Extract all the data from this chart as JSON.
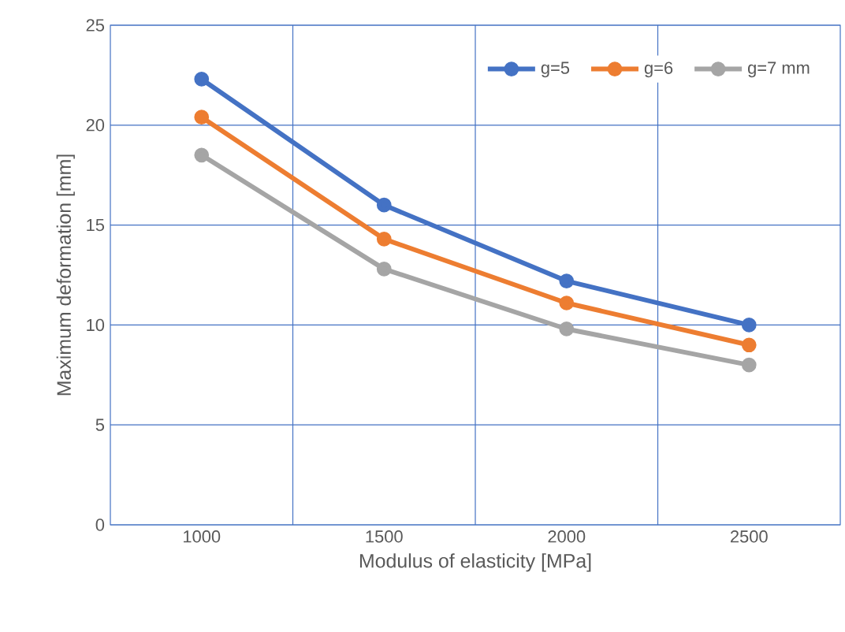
{
  "chart_data": {
    "type": "line",
    "xlabel": "Modulus of elasticity [MPa]",
    "ylabel": "Maximum deformation [mm]",
    "categories": [
      "1000",
      "1500",
      "2000",
      "2500"
    ],
    "series": [
      {
        "name": "g=5",
        "color": "#4472c4",
        "values": [
          22.3,
          16.0,
          12.2,
          10.0
        ]
      },
      {
        "name": "g=6",
        "color": "#ed7d31",
        "values": [
          20.4,
          14.3,
          11.1,
          9.0
        ]
      },
      {
        "name": "g=7 mm",
        "color": "#a5a5a5",
        "values": [
          18.5,
          12.8,
          9.8,
          8.0
        ]
      }
    ],
    "ylim": [
      0,
      25
    ],
    "yticks": [
      0,
      5,
      10,
      15,
      20,
      25
    ],
    "grid": true,
    "legend": "top right",
    "marker": "circle",
    "line_style": "solid"
  }
}
